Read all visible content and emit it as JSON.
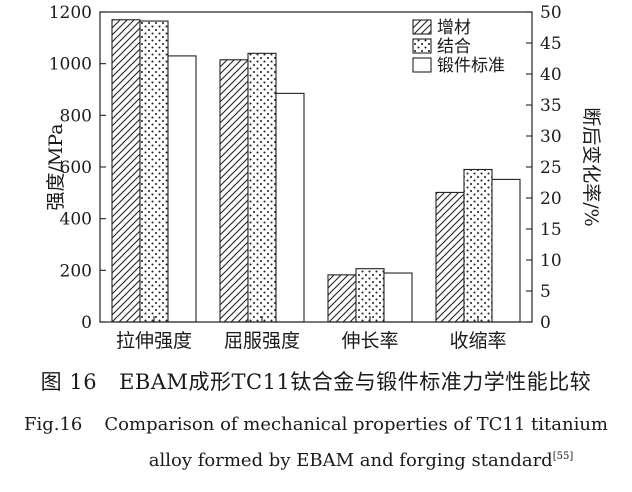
{
  "chart_data": {
    "type": "bar",
    "categories": [
      "拉伸强度",
      "屈服强度",
      "伸长率",
      "收缩率"
    ],
    "series": [
      {
        "name": "增材",
        "pattern": "hatch",
        "values": [
          1170,
          1015,
          7.6,
          20.9
        ]
      },
      {
        "name": "结合",
        "pattern": "dots",
        "values": [
          1165,
          1040,
          8.6,
          24.6
        ]
      },
      {
        "name": "锻件标准",
        "pattern": "plain",
        "values": [
          1030,
          885,
          7.9,
          23.0
        ]
      }
    ],
    "series_axis": [
      "left",
      "left",
      "right",
      "right"
    ],
    "ylabel": "强度/MPa",
    "ylim": [
      0,
      1200
    ],
    "yticks": [
      "0",
      "200",
      "400",
      "600",
      "800",
      "1000",
      "1200"
    ],
    "y2label": "断后变化率/%",
    "y2lim": [
      0,
      50
    ],
    "y2ticks": [
      "0",
      "5",
      "10",
      "15",
      "20",
      "25",
      "30",
      "35",
      "40",
      "45",
      "50"
    ],
    "legend_position": "top-right",
    "grid": false
  },
  "caption": {
    "cn_tag": "图 16",
    "cn_text": "EBAM成形TC11钛合金与锻件标准力学性能比较",
    "en_tag": "Fig.16",
    "en_line1": "Comparison of mechanical properties of TC11 titanium",
    "en_line2": "alloy formed by EBAM and forging standard",
    "en_ref": "[55]"
  }
}
